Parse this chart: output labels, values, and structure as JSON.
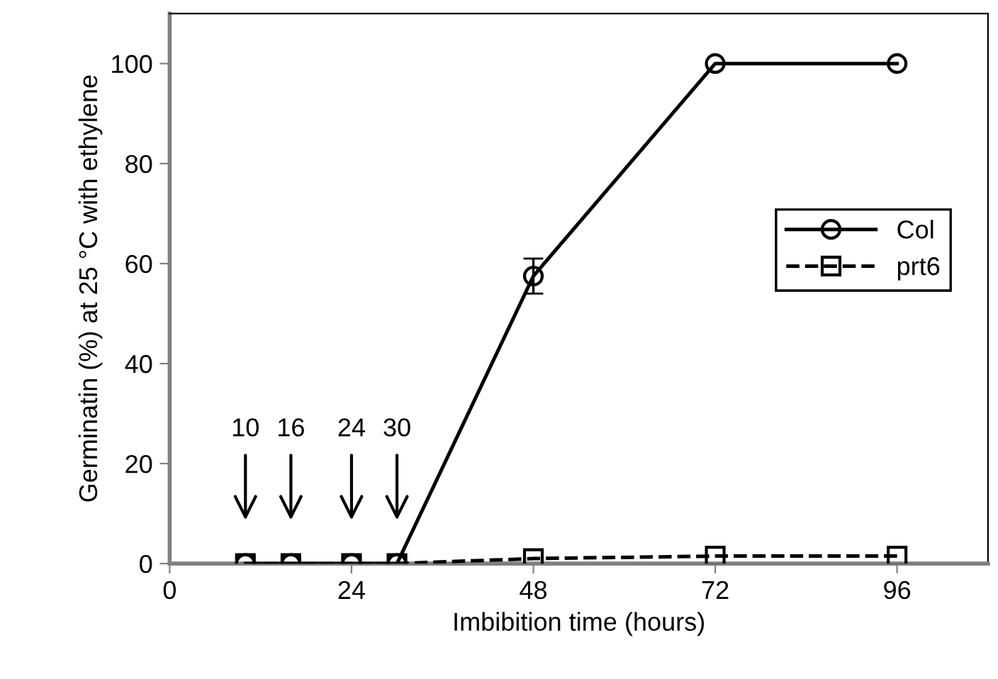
{
  "chart_data": {
    "type": "line",
    "xlabel": "Imbibition time (hours)",
    "ylabel": "Germinatin (%) at 25 °C with ethylene",
    "x": [
      10,
      16,
      24,
      30,
      48,
      72,
      96
    ],
    "series": [
      {
        "name": "Col",
        "color": "#000000",
        "marker": "circle",
        "line_style": "solid",
        "values": [
          0,
          0,
          0,
          0,
          57.5,
          100,
          100
        ],
        "errors": [
          null,
          null,
          null,
          null,
          3.5,
          null,
          null
        ]
      },
      {
        "name": "prt6",
        "color": "#000000",
        "marker": "square",
        "line_style": "dashed",
        "values": [
          0,
          0,
          0,
          0,
          1,
          1.5,
          1.5
        ]
      }
    ],
    "annotations": [
      "10",
      "16",
      "24",
      "30"
    ],
    "xlim": [
      0,
      108
    ],
    "xticks": [
      0,
      24,
      48,
      72,
      96
    ],
    "ylim": [
      0,
      110
    ],
    "yticks": [
      0,
      20,
      40,
      60,
      80,
      100
    ],
    "grid": false,
    "legend": "right"
  }
}
